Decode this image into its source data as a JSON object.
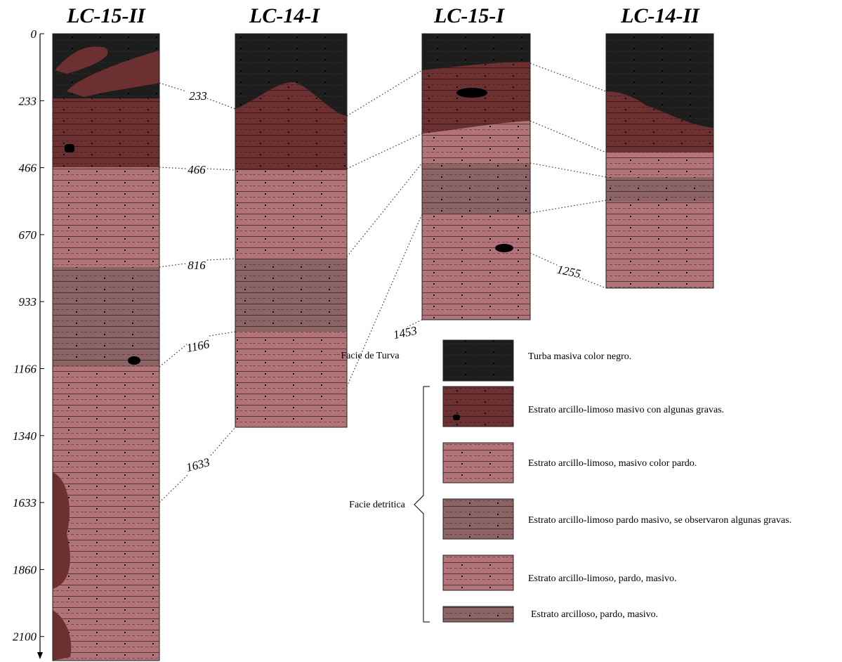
{
  "columns": [
    {
      "title": "LC-15-II"
    },
    {
      "title": "LC-14-I"
    },
    {
      "title": "LC-15-I"
    },
    {
      "title": "LC-14-II"
    }
  ],
  "depth_axis": {
    "labels": [
      0,
      233,
      466,
      670,
      933,
      1166,
      1340,
      1633,
      1860,
      2100
    ]
  },
  "correlations": [
    233,
    466,
    816,
    1166,
    1633,
    1255,
    1453
  ],
  "legend": {
    "groups": [
      "Facie de Turva",
      "Facie detritica"
    ],
    "items": [
      "Turba masiva color negro.",
      "Estrato arcillo-limoso masivo con algunas gravas.",
      "Estrato arcillo-limoso, masivo color pardo.",
      "Estrato arcillo-limoso pardo masivo, se observaron algunas gravas.",
      "Estrato arcillo-limoso, pardo, masivo.",
      "Estrato arcilloso, pardo, masivo."
    ]
  }
}
